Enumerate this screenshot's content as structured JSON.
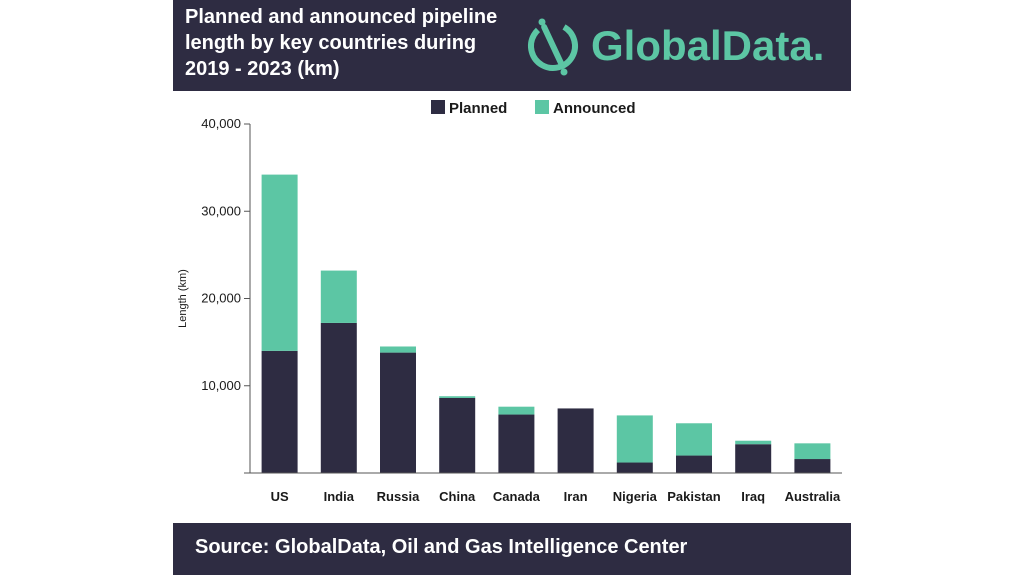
{
  "header": {
    "title": "Planned and announced pipeline length by key countries during 2019 - 2023 (km)",
    "logo_text": "GlobalData."
  },
  "footer": {
    "source": "Source:  GlobalData, Oil and Gas Intelligence Center"
  },
  "colors": {
    "panel": "#2e2c42",
    "planned": "#2e2c42",
    "announced": "#5cc6a4",
    "logo": "#5cc6a4"
  },
  "icons": {
    "logo": "globaldata-logo-icon"
  },
  "chart_data": {
    "type": "bar",
    "stacked": true,
    "categories": [
      "US",
      "India",
      "Russia",
      "China",
      "Canada",
      "Iran",
      "Nigeria",
      "Pakistan",
      "Iraq",
      "Australia"
    ],
    "series": [
      {
        "name": "Planned",
        "values": [
          14000,
          17200,
          13800,
          8600,
          6700,
          7400,
          1200,
          2000,
          3300,
          1600
        ]
      },
      {
        "name": "Announced",
        "values": [
          20200,
          6000,
          700,
          200,
          900,
          0,
          5400,
          3700,
          400,
          1800
        ]
      }
    ],
    "ylabel": "Length (km)",
    "xlabel": "",
    "ylim": [
      0,
      40000
    ],
    "yticks": [
      0,
      10000,
      20000,
      30000,
      40000
    ],
    "ytick_labels": [
      "",
      "10,000",
      "20,000",
      "30,000",
      "40,000"
    ],
    "legend_position": "top-center",
    "grid": false
  }
}
